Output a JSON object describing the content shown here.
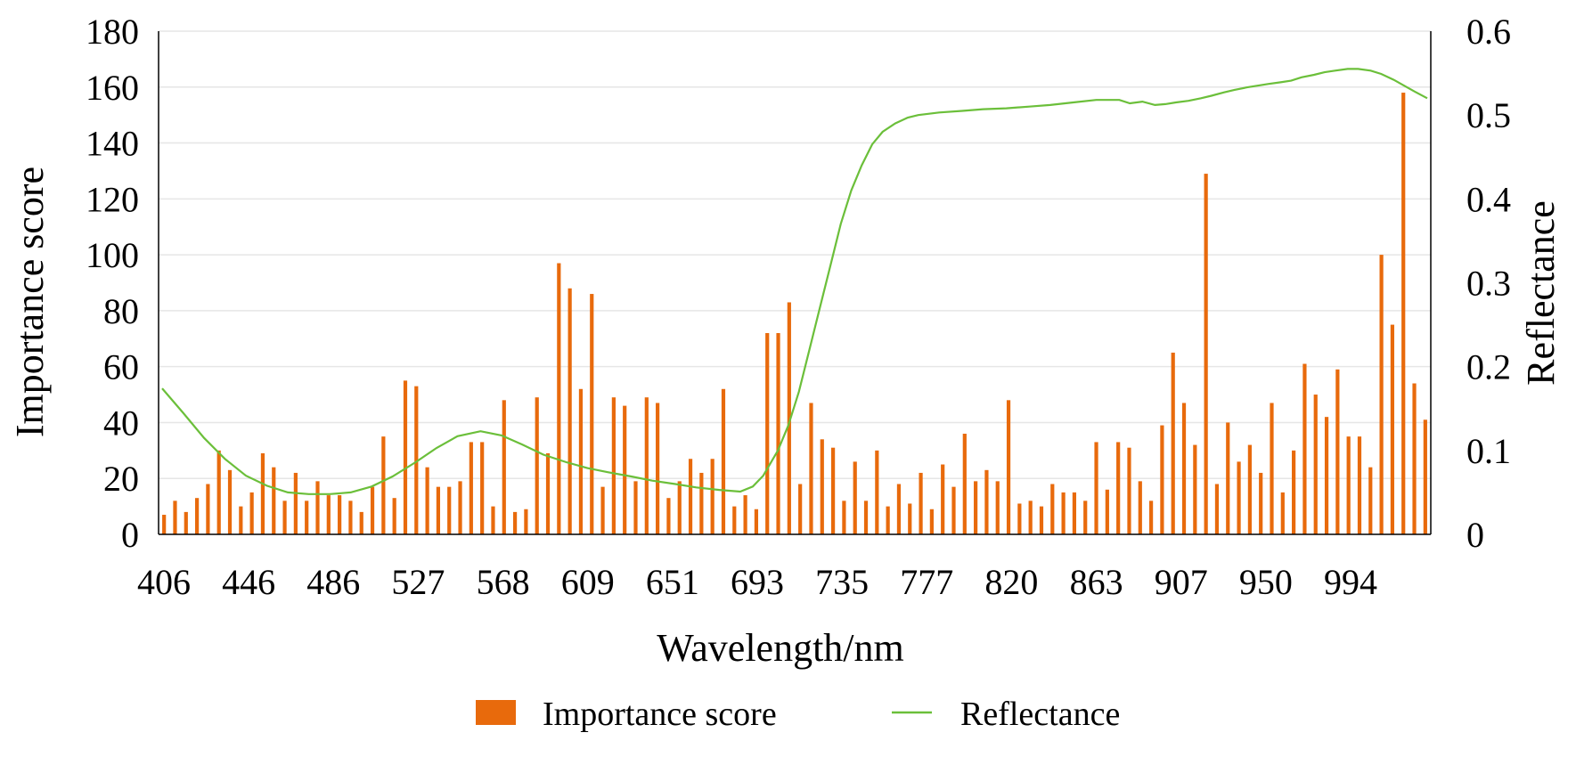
{
  "chart_data": {
    "type": "bar",
    "xlabel": "Wavelength/nm",
    "ylabel": "Importance score",
    "y2label": "Reflectance",
    "ylim": [
      0,
      180
    ],
    "y2lim": [
      0,
      0.6
    ],
    "yticks": [
      "0",
      "20",
      "40",
      "60",
      "80",
      "100",
      "120",
      "140",
      "160",
      "180"
    ],
    "y2ticks": [
      "0",
      "0.1",
      "0.2",
      "0.3",
      "0.4",
      "0.5",
      "0.6"
    ],
    "xticks": [
      "406",
      "446",
      "486",
      "527",
      "568",
      "609",
      "651",
      "693",
      "735",
      "777",
      "820",
      "863",
      "907",
      "950",
      "994"
    ],
    "grid": true,
    "legend_position": "bottom",
    "series": [
      {
        "name": "Importance score",
        "type": "bar",
        "color": "#E86A0C",
        "values": [
          7,
          12,
          8,
          13,
          18,
          30,
          23,
          10,
          15,
          29,
          24,
          12,
          22,
          12,
          19,
          14,
          14,
          12,
          8,
          17,
          35,
          13,
          55,
          53,
          24,
          17,
          17,
          19,
          33,
          33,
          10,
          48,
          8,
          9,
          49,
          29,
          97,
          88,
          52,
          86,
          17,
          49,
          46,
          19,
          49,
          47,
          13,
          19,
          27,
          22,
          27,
          52,
          10,
          14,
          9,
          72,
          72,
          83,
          18,
          47,
          34,
          31,
          12,
          26,
          12,
          30,
          10,
          18,
          11,
          22,
          9,
          25,
          17,
          36,
          19,
          23,
          19,
          48,
          11,
          12,
          10,
          18,
          15,
          15,
          12,
          33,
          16,
          33,
          31,
          19,
          12,
          39,
          65,
          47,
          32,
          129,
          18,
          40,
          26,
          32,
          22,
          47,
          15,
          30,
          61,
          50,
          42,
          59,
          35,
          35,
          24,
          100,
          75,
          158,
          54,
          41
        ]
      },
      {
        "name": "Reflectance",
        "type": "line",
        "color": "#6BBF3A",
        "points": [
          [
            406,
            0.174
          ],
          [
            416,
            0.145
          ],
          [
            426,
            0.115
          ],
          [
            436,
            0.09
          ],
          [
            446,
            0.07
          ],
          [
            456,
            0.058
          ],
          [
            466,
            0.05
          ],
          [
            476,
            0.048
          ],
          [
            486,
            0.048
          ],
          [
            496,
            0.05
          ],
          [
            506,
            0.057
          ],
          [
            516,
            0.069
          ],
          [
            527,
            0.086
          ],
          [
            537,
            0.103
          ],
          [
            547,
            0.117
          ],
          [
            558,
            0.123
          ],
          [
            568,
            0.118
          ],
          [
            578,
            0.107
          ],
          [
            588,
            0.095
          ],
          [
            599,
            0.086
          ],
          [
            609,
            0.079
          ],
          [
            619,
            0.074
          ],
          [
            630,
            0.069
          ],
          [
            640,
            0.064
          ],
          [
            651,
            0.06
          ],
          [
            661,
            0.056
          ],
          [
            672,
            0.053
          ],
          [
            682,
            0.051
          ],
          [
            688,
            0.057
          ],
          [
            693,
            0.07
          ],
          [
            700,
            0.1
          ],
          [
            705,
            0.13
          ],
          [
            710,
            0.17
          ],
          [
            715,
            0.22
          ],
          [
            720,
            0.27
          ],
          [
            725,
            0.32
          ],
          [
            730,
            0.37
          ],
          [
            735,
            0.41
          ],
          [
            740,
            0.44
          ],
          [
            745,
            0.465
          ],
          [
            750,
            0.48
          ],
          [
            756,
            0.49
          ],
          [
            762,
            0.497
          ],
          [
            767,
            0.5
          ],
          [
            777,
            0.503
          ],
          [
            788,
            0.505
          ],
          [
            798,
            0.507
          ],
          [
            809,
            0.508
          ],
          [
            820,
            0.51
          ],
          [
            830,
            0.512
          ],
          [
            841,
            0.515
          ],
          [
            852,
            0.518
          ],
          [
            863,
            0.518
          ],
          [
            868,
            0.514
          ],
          [
            874,
            0.516
          ],
          [
            880,
            0.512
          ],
          [
            885,
            0.513
          ],
          [
            890,
            0.515
          ],
          [
            896,
            0.517
          ],
          [
            902,
            0.52
          ],
          [
            907,
            0.523
          ],
          [
            913,
            0.527
          ],
          [
            918,
            0.53
          ],
          [
            924,
            0.533
          ],
          [
            929,
            0.535
          ],
          [
            934,
            0.537
          ],
          [
            940,
            0.539
          ],
          [
            945,
            0.541
          ],
          [
            950,
            0.545
          ],
          [
            956,
            0.548
          ],
          [
            961,
            0.551
          ],
          [
            966,
            0.553
          ],
          [
            972,
            0.555
          ],
          [
            977,
            0.555
          ],
          [
            983,
            0.553
          ],
          [
            988,
            0.549
          ],
          [
            994,
            0.542
          ],
          [
            999,
            0.535
          ],
          [
            1004,
            0.528
          ],
          [
            1010,
            0.52
          ]
        ]
      }
    ]
  },
  "legend": {
    "items": [
      {
        "label": "Importance score",
        "color": "#E86A0C",
        "kind": "bar"
      },
      {
        "label": "Reflectance",
        "color": "#6BBF3A",
        "kind": "line"
      }
    ]
  },
  "colors": {
    "grid": "#E6E6E6",
    "axis": "#000000"
  }
}
